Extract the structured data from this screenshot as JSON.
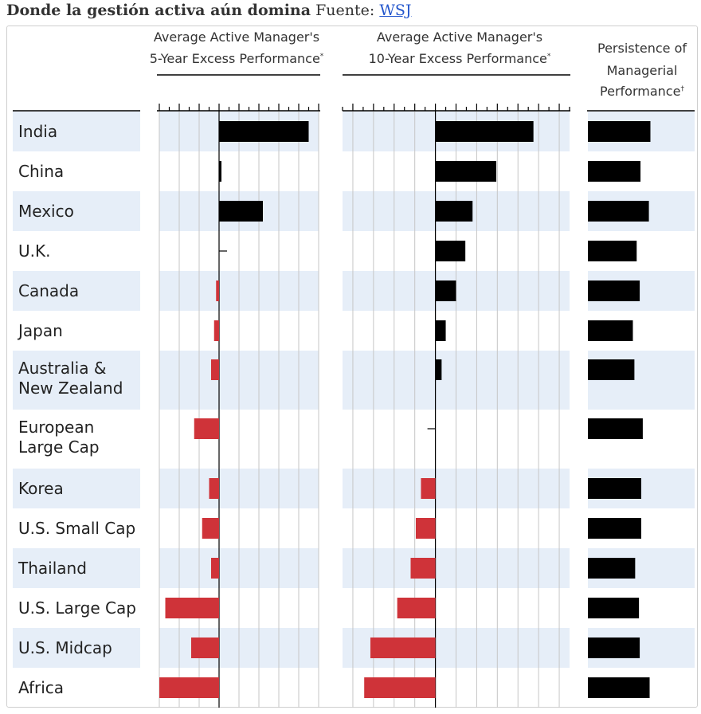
{
  "caption": {
    "title": "Donde la gestión activa aún domina",
    "source_prefix": "Fuente:",
    "source_link": "WSJ"
  },
  "colors": {
    "band": "#e6eef8",
    "positive": "#000000",
    "negative": "#cf3339",
    "grid": "#c6c6c6",
    "text": "#222222"
  },
  "chart_data": {
    "type": "bar",
    "categories": [
      "India",
      "China",
      "Mexico",
      "U.K.",
      "Canada",
      "Japan",
      "Australia & New Zealand",
      "European Large Cap",
      "Korea",
      "U.S. Small Cap",
      "Thailand",
      "U.S. Large Cap",
      "U.S. Midcap",
      "Africa"
    ],
    "category_lines": [
      [
        "India"
      ],
      [
        "China"
      ],
      [
        "Mexico"
      ],
      [
        "U.K."
      ],
      [
        "Canada"
      ],
      [
        "Japan"
      ],
      [
        "Australia &",
        "New Zealand"
      ],
      [
        "European",
        "Large Cap"
      ],
      [
        "Korea"
      ],
      [
        "U.S. Small Cap"
      ],
      [
        "Thailand"
      ],
      [
        "U.S. Large Cap"
      ],
      [
        "U.S. Midcap"
      ],
      [
        "Africa"
      ]
    ],
    "series": [
      {
        "name": "Average Active Manager's 5-Year Excess Performance*",
        "header_lines": [
          "Average Active Manager's",
          "5-Year Excess Performance"
        ],
        "header_mark": "*",
        "values": [
          4.5,
          0.1,
          2.2,
          0,
          -0.15,
          -0.25,
          -0.4,
          -1.25,
          -0.5,
          -0.85,
          -0.4,
          -2.7,
          -1.4,
          -3.0
        ],
        "xlim": [
          -3,
          5
        ]
      },
      {
        "name": "Average Active Manager's 10-Year Excess Performance*",
        "header_lines": [
          "Average Active Manager's",
          "10-Year Excess Performance"
        ],
        "header_mark": "*",
        "values": [
          4.75,
          2.95,
          1.8,
          1.45,
          1.0,
          0.5,
          0.3,
          0,
          -0.7,
          -0.95,
          -1.2,
          -1.85,
          -3.15,
          -3.45
        ],
        "xlim": [
          -4.5,
          6.5
        ]
      },
      {
        "name": "Persistence of Managerial Performance†",
        "header_lines": [
          "Persistence of",
          "Managerial",
          "Performance"
        ],
        "header_mark": "†",
        "values": [
          0.82,
          0.69,
          0.8,
          0.64,
          0.68,
          0.59,
          0.61,
          0.72,
          0.7,
          0.7,
          0.62,
          0.67,
          0.68,
          0.81
        ],
        "xlim": [
          0,
          1.4
        ]
      }
    ],
    "ticks_minor_step": 0.5,
    "ticks_major_step": 1,
    "legend": "none"
  }
}
